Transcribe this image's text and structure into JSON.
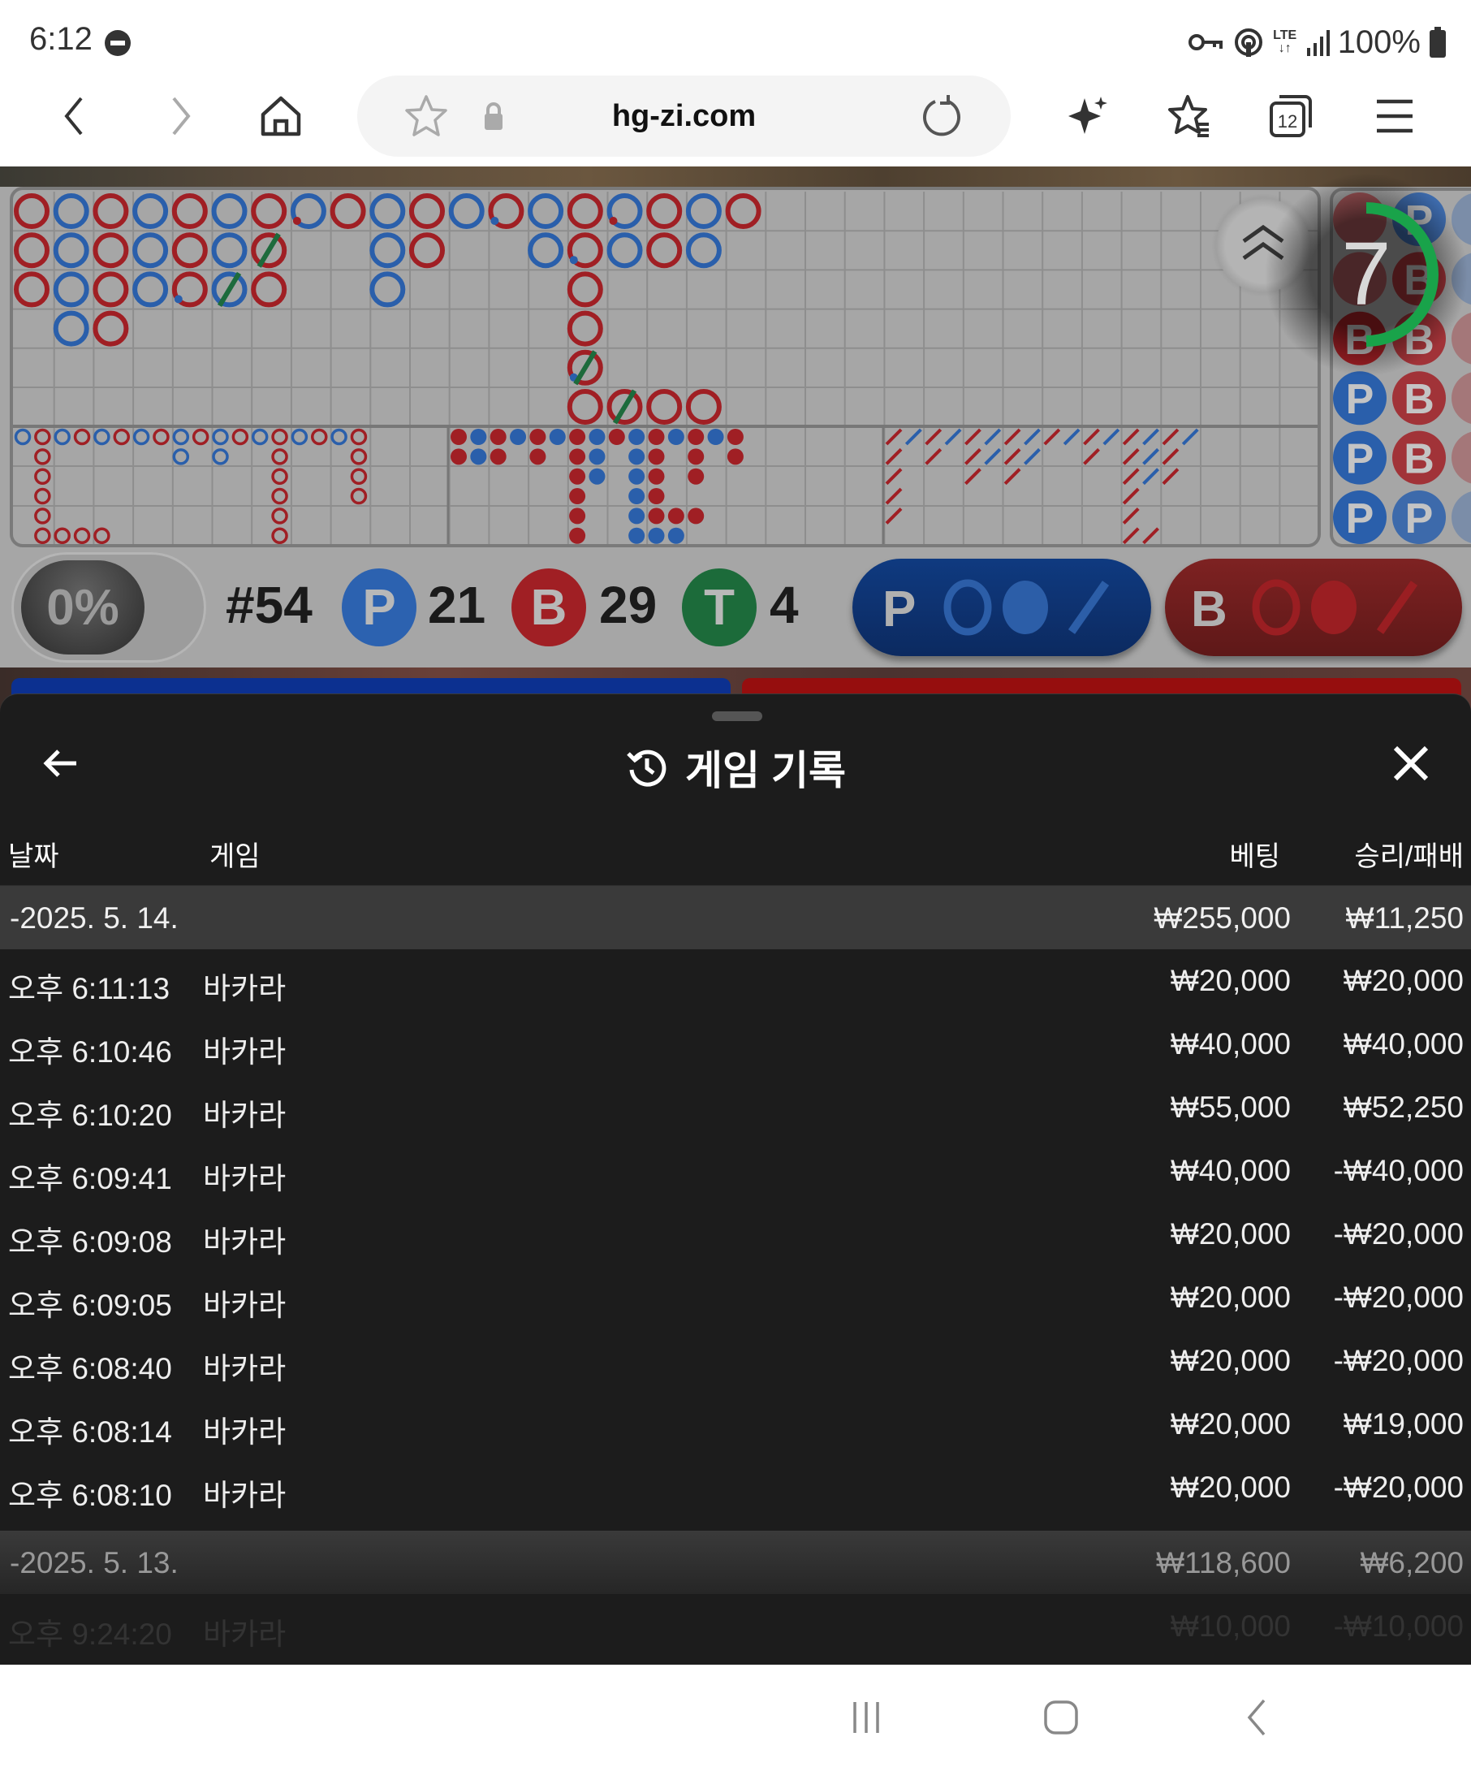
{
  "status_bar": {
    "time": "6:12",
    "battery": "100%",
    "network": "LTE",
    "icons": [
      "do-not-disturb-icon",
      "vpn-key-icon",
      "hotspot-icon",
      "lte-icon",
      "signal-icon",
      "battery-icon"
    ]
  },
  "browser": {
    "url": "hg-zi.com",
    "tab_count": "12",
    "icons": [
      "back-icon",
      "forward-icon",
      "home-icon",
      "bookmark-star-icon",
      "lock-icon",
      "reload-icon",
      "ai-sparkle-icon",
      "bookmarks-icon",
      "tabs-icon",
      "menu-icon"
    ]
  },
  "game": {
    "colors": {
      "banker": "#a01f24",
      "player": "#2a5fab",
      "tie": "#1d6b3c",
      "timer": "#19a34a"
    },
    "big_road": {
      "rows": [
        "RBRBRBRBRBRBRBRBRBR",
        "RBRBRBR..BR..BRBRB.",
        "RBRBRBR..B....R....",
        ".BR...........R....",
        "..............R....",
        "..............RRRR."
      ],
      "pair_dots": [
        [
          0,
          7
        ],
        [
          0,
          12
        ],
        [
          0,
          15
        ],
        [
          1,
          14
        ],
        [
          2,
          4
        ],
        [
          4,
          14
        ]
      ],
      "tie_slashes": [
        [
          1,
          6
        ],
        [
          2,
          5
        ],
        [
          4,
          14
        ],
        [
          5,
          15
        ]
      ]
    },
    "big_eye_road": {
      "rows": [
        "BRBRBRBRBRBRBRBRBR",
        ".R......B.B..R...R",
        ".R...........R...R",
        ".R...........R...R",
        ".R...........R....",
        ".RRRR........R...."
      ]
    },
    "small_road": {
      "rows": [
        "RBRBRBRBRBRBRBR",
        "RBR.R.RB.BR.R.R",
        "......RB.BR.R..",
        "......R..BR....",
        "......R..BRRR..",
        "......R..BBB..."
      ]
    },
    "cockroach_road": {
      "rows": [
        "RBRBRBRBRBRBRBRB",
        "R.R.RBRB..R.RBR.",
        "R...R.R.....RBR.",
        "R...........R...",
        "R...........R...",
        "............RR.."
      ]
    },
    "bead_plate": {
      "columns": [
        "BBBPPP",
        "PBBBBP",
        "PPBBBP"
      ],
      "labels": {
        "B": "B",
        "P": "P"
      }
    },
    "timer": {
      "seconds": "7",
      "fraction_remaining": 0.5
    },
    "percent": "0%",
    "round": "#54",
    "player_label": "P",
    "player_count": "21",
    "banker_label": "B",
    "banker_count": "29",
    "tie_label": "T",
    "tie_count": "4",
    "player_predict_label": "P",
    "banker_predict_label": "B"
  },
  "sheet": {
    "title": "게임 기록",
    "columns": {
      "date": "날짜",
      "game": "게임",
      "bet": "베팅",
      "result": "승리/패배"
    },
    "groups": [
      {
        "date": "-2025. 5. 14.",
        "bet_total": "₩255,000",
        "result_total": "₩11,250",
        "rows": [
          {
            "time": "오후 6:11:13",
            "game": "바카라",
            "bet": "₩20,000",
            "result": "₩20,000"
          },
          {
            "time": "오후 6:10:46",
            "game": "바카라",
            "bet": "₩40,000",
            "result": "₩40,000"
          },
          {
            "time": "오후 6:10:20",
            "game": "바카라",
            "bet": "₩55,000",
            "result": "₩52,250"
          },
          {
            "time": "오후 6:09:41",
            "game": "바카라",
            "bet": "₩40,000",
            "result": "-₩40,000"
          },
          {
            "time": "오후 6:09:08",
            "game": "바카라",
            "bet": "₩20,000",
            "result": "-₩20,000"
          },
          {
            "time": "오후 6:09:05",
            "game": "바카라",
            "bet": "₩20,000",
            "result": "-₩20,000"
          },
          {
            "time": "오후 6:08:40",
            "game": "바카라",
            "bet": "₩20,000",
            "result": "-₩20,000"
          },
          {
            "time": "오후 6:08:14",
            "game": "바카라",
            "bet": "₩20,000",
            "result": "₩19,000"
          },
          {
            "time": "오후 6:08:10",
            "game": "바카라",
            "bet": "₩20,000",
            "result": "-₩20,000"
          }
        ]
      },
      {
        "date": "-2025. 5. 13.",
        "bet_total": "₩118,600",
        "result_total": "₩6,200",
        "rows": [
          {
            "time": "오후 9:24:20",
            "game": "바카라",
            "bet": "₩10,000",
            "result": "-₩10,000"
          }
        ]
      }
    ]
  }
}
